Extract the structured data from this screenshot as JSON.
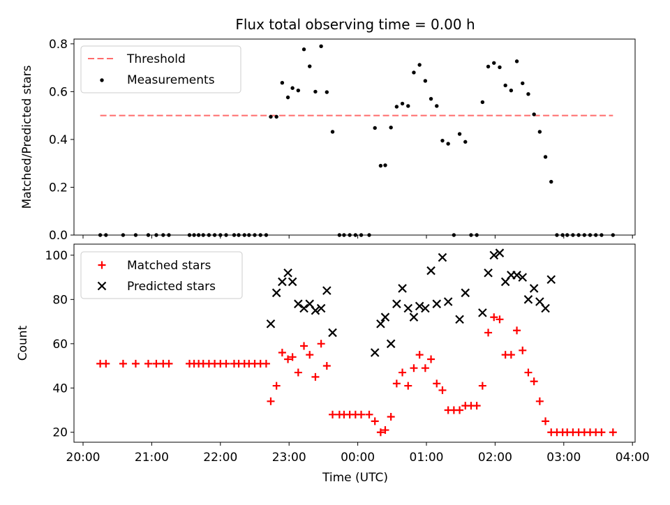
{
  "title": "Flux total observing time = 0.00 h",
  "colors": {
    "threshold": "#ff6b6b",
    "measurements": "#000000",
    "matched": "#ff0000",
    "predicted": "#000000",
    "axes": "#000000",
    "background": "#ffffff"
  },
  "chart_data": [
    {
      "type": "scatter",
      "panel": "top",
      "ylabel": "Matched/Predicted stars",
      "xlabel": "",
      "xlim": [
        "20:00",
        "04:00"
      ],
      "ylim": [
        0,
        0.82
      ],
      "yticks": [
        "0.0",
        "0.2",
        "0.4",
        "0.6",
        "0.8"
      ],
      "grid": false,
      "legend_position": "upper left",
      "threshold": {
        "name": "Threshold",
        "value": 0.5,
        "x_range": [
          "20:15",
          "23:04",
          "03:43"
        ]
      },
      "series": [
        {
          "name": "Measurements",
          "marker": "dot",
          "points": [
            [
              "20:15",
              0.0
            ],
            [
              "20:20",
              0.0
            ],
            [
              "20:35",
              0.0
            ],
            [
              "20:46",
              0.0
            ],
            [
              "20:57",
              0.0
            ],
            [
              "21:04",
              0.0
            ],
            [
              "21:10",
              0.0
            ],
            [
              "21:15",
              0.0
            ],
            [
              "21:33",
              0.0
            ],
            [
              "21:37",
              0.0
            ],
            [
              "21:41",
              0.0
            ],
            [
              "21:45",
              0.0
            ],
            [
              "21:50",
              0.0
            ],
            [
              "21:55",
              0.0
            ],
            [
              "22:00",
              0.0
            ],
            [
              "22:05",
              0.0
            ],
            [
              "22:12",
              0.0
            ],
            [
              "22:16",
              0.0
            ],
            [
              "22:21",
              0.0
            ],
            [
              "22:25",
              0.0
            ],
            [
              "22:30",
              0.0
            ],
            [
              "22:35",
              0.0
            ],
            [
              "22:40",
              0.0
            ],
            [
              "22:44",
              0.495
            ],
            [
              "22:49",
              0.495
            ],
            [
              "22:54",
              0.637
            ],
            [
              "22:59",
              0.576
            ],
            [
              "23:03",
              0.615
            ],
            [
              "23:08",
              0.605
            ],
            [
              "23:13",
              0.777
            ],
            [
              "23:18",
              0.706
            ],
            [
              "23:23",
              0.6
            ],
            [
              "23:28",
              0.79
            ],
            [
              "23:33",
              0.598
            ],
            [
              "23:38",
              0.432
            ],
            [
              "23:44",
              0.0
            ],
            [
              "23:48",
              0.0
            ],
            [
              "23:53",
              0.0
            ],
            [
              "23:58",
              0.0
            ],
            [
              "00:03",
              0.0
            ],
            [
              "00:10",
              0.0
            ],
            [
              "00:15",
              0.448
            ],
            [
              "00:20",
              0.29
            ],
            [
              "00:24",
              0.292
            ],
            [
              "00:29",
              0.45
            ],
            [
              "00:34",
              0.537
            ],
            [
              "00:39",
              0.55
            ],
            [
              "00:44",
              0.54
            ],
            [
              "00:49",
              0.68
            ],
            [
              "00:54",
              0.712
            ],
            [
              "00:59",
              0.645
            ],
            [
              "01:04",
              0.57
            ],
            [
              "01:09",
              0.54
            ],
            [
              "01:14",
              0.395
            ],
            [
              "01:19",
              0.382
            ],
            [
              "01:24",
              0.0
            ],
            [
              "01:29",
              0.423
            ],
            [
              "01:34",
              0.39
            ],
            [
              "01:39",
              0.0
            ],
            [
              "01:44",
              0.0
            ],
            [
              "01:49",
              0.556
            ],
            [
              "01:54",
              0.705
            ],
            [
              "01:59",
              0.72
            ],
            [
              "02:04",
              0.702
            ],
            [
              "02:09",
              0.626
            ],
            [
              "02:14",
              0.605
            ],
            [
              "02:19",
              0.727
            ],
            [
              "02:24",
              0.635
            ],
            [
              "02:29",
              0.59
            ],
            [
              "02:34",
              0.505
            ],
            [
              "02:39",
              0.432
            ],
            [
              "02:44",
              0.327
            ],
            [
              "02:49",
              0.223
            ],
            [
              "02:54",
              0.0
            ],
            [
              "02:59",
              0.0
            ],
            [
              "03:03",
              0.0
            ],
            [
              "03:08",
              0.0
            ],
            [
              "03:13",
              0.0
            ],
            [
              "03:18",
              0.0
            ],
            [
              "03:23",
              0.0
            ],
            [
              "03:28",
              0.0
            ],
            [
              "03:33",
              0.0
            ],
            [
              "03:43",
              0.0
            ]
          ]
        }
      ]
    },
    {
      "type": "scatter",
      "panel": "bottom",
      "ylabel": "Count",
      "xlabel": "Time (UTC)",
      "xlim": [
        "20:00",
        "04:00"
      ],
      "xticks": [
        "20:00",
        "21:00",
        "22:00",
        "23:00",
        "00:00",
        "01:00",
        "02:00",
        "03:00",
        "04:00"
      ],
      "ylim": [
        15.5,
        105
      ],
      "yticks": [
        "20",
        "40",
        "60",
        "80",
        "100"
      ],
      "grid": false,
      "legend_position": "upper left",
      "series": [
        {
          "name": "Matched stars",
          "marker": "plus",
          "points": [
            [
              "20:15",
              51
            ],
            [
              "20:20",
              51
            ],
            [
              "20:35",
              51
            ],
            [
              "20:46",
              51
            ],
            [
              "20:57",
              51
            ],
            [
              "21:04",
              51
            ],
            [
              "21:10",
              51
            ],
            [
              "21:15",
              51
            ],
            [
              "21:33",
              51
            ],
            [
              "21:37",
              51
            ],
            [
              "21:41",
              51
            ],
            [
              "21:45",
              51
            ],
            [
              "21:50",
              51
            ],
            [
              "21:55",
              51
            ],
            [
              "22:00",
              51
            ],
            [
              "22:05",
              51
            ],
            [
              "22:12",
              51
            ],
            [
              "22:16",
              51
            ],
            [
              "22:21",
              51
            ],
            [
              "22:25",
              51
            ],
            [
              "22:30",
              51
            ],
            [
              "22:35",
              51
            ],
            [
              "22:40",
              51
            ],
            [
              "22:44",
              34
            ],
            [
              "22:49",
              41
            ],
            [
              "22:54",
              56
            ],
            [
              "22:59",
              53
            ],
            [
              "23:03",
              54
            ],
            [
              "23:08",
              47
            ],
            [
              "23:13",
              59
            ],
            [
              "23:18",
              55
            ],
            [
              "23:23",
              45
            ],
            [
              "23:28",
              60
            ],
            [
              "23:33",
              50
            ],
            [
              "23:38",
              28
            ],
            [
              "23:44",
              28
            ],
            [
              "23:48",
              28
            ],
            [
              "23:53",
              28
            ],
            [
              "23:58",
              28
            ],
            [
              "00:03",
              28
            ],
            [
              "00:10",
              28
            ],
            [
              "00:15",
              25
            ],
            [
              "00:20",
              20
            ],
            [
              "00:24",
              21
            ],
            [
              "00:29",
              27
            ],
            [
              "00:34",
              42
            ],
            [
              "00:39",
              47
            ],
            [
              "00:44",
              41
            ],
            [
              "00:49",
              49
            ],
            [
              "00:54",
              55
            ],
            [
              "00:59",
              49
            ],
            [
              "01:04",
              53
            ],
            [
              "01:09",
              42
            ],
            [
              "01:14",
              39
            ],
            [
              "01:19",
              30
            ],
            [
              "01:24",
              30
            ],
            [
              "01:29",
              30
            ],
            [
              "01:34",
              32
            ],
            [
              "01:39",
              32
            ],
            [
              "01:44",
              32
            ],
            [
              "01:49",
              41
            ],
            [
              "01:54",
              65
            ],
            [
              "01:59",
              72
            ],
            [
              "02:04",
              71
            ],
            [
              "02:09",
              55
            ],
            [
              "02:14",
              55
            ],
            [
              "02:19",
              66
            ],
            [
              "02:24",
              57
            ],
            [
              "02:29",
              47
            ],
            [
              "02:34",
              43
            ],
            [
              "02:39",
              34
            ],
            [
              "02:44",
              25
            ],
            [
              "02:49",
              20
            ],
            [
              "02:54",
              20
            ],
            [
              "02:59",
              20
            ],
            [
              "03:03",
              20
            ],
            [
              "03:08",
              20
            ],
            [
              "03:13",
              20
            ],
            [
              "03:18",
              20
            ],
            [
              "03:23",
              20
            ],
            [
              "03:28",
              20
            ],
            [
              "03:33",
              20
            ],
            [
              "03:43",
              20
            ]
          ]
        },
        {
          "name": "Predicted stars",
          "marker": "x",
          "points": [
            [
              "22:44",
              69
            ],
            [
              "22:49",
              83
            ],
            [
              "22:54",
              88
            ],
            [
              "22:59",
              92
            ],
            [
              "23:03",
              88
            ],
            [
              "23:08",
              78
            ],
            [
              "23:13",
              76
            ],
            [
              "23:18",
              78
            ],
            [
              "23:23",
              75
            ],
            [
              "23:28",
              76
            ],
            [
              "23:33",
              84
            ],
            [
              "23:38",
              65
            ],
            [
              "00:15",
              56
            ],
            [
              "00:20",
              69
            ],
            [
              "00:24",
              72
            ],
            [
              "00:29",
              60
            ],
            [
              "00:34",
              78
            ],
            [
              "00:39",
              85
            ],
            [
              "00:44",
              76
            ],
            [
              "00:49",
              72
            ],
            [
              "00:54",
              77
            ],
            [
              "00:59",
              76
            ],
            [
              "01:04",
              93
            ],
            [
              "01:09",
              78
            ],
            [
              "01:14",
              99
            ],
            [
              "01:19",
              79
            ],
            [
              "01:29",
              71
            ],
            [
              "01:34",
              83
            ],
            [
              "01:49",
              74
            ],
            [
              "01:54",
              92
            ],
            [
              "01:59",
              100
            ],
            [
              "02:04",
              101
            ],
            [
              "02:09",
              88
            ],
            [
              "02:14",
              91
            ],
            [
              "02:19",
              91
            ],
            [
              "02:24",
              90
            ],
            [
              "02:29",
              80
            ],
            [
              "02:34",
              85
            ],
            [
              "02:39",
              79
            ],
            [
              "02:44",
              76
            ],
            [
              "02:49",
              89
            ]
          ]
        }
      ]
    }
  ]
}
